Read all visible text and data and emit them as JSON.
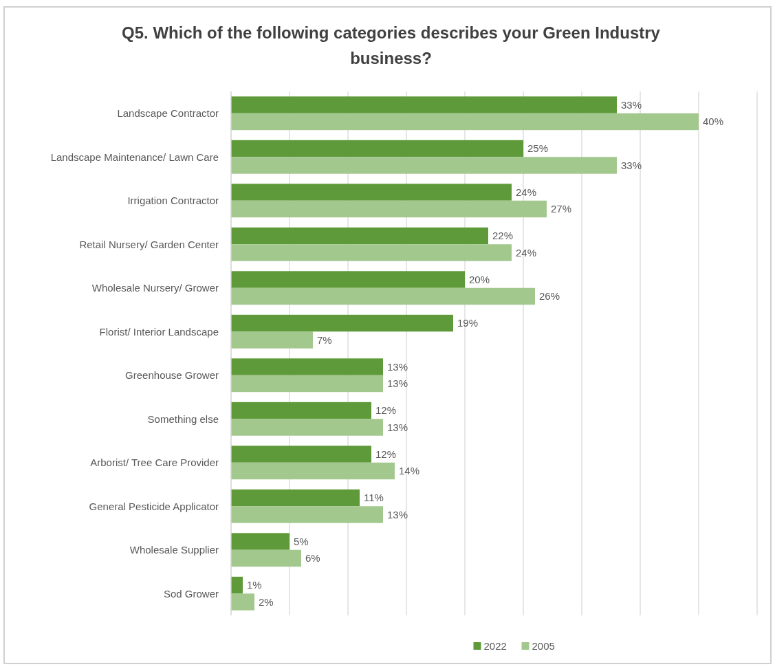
{
  "chart_data": {
    "type": "bar",
    "orientation": "horizontal",
    "title": "Q5. Which of the following categories describes your Green Industry business?",
    "categories": [
      "Landscape Contractor",
      "Landscape Maintenance/ Lawn Care",
      "Irrigation Contractor",
      "Retail Nursery/ Garden Center",
      "Wholesale Nursery/ Grower",
      "Florist/ Interior Landscape",
      "Greenhouse Grower",
      "Something else",
      "Arborist/ Tree Care Provider",
      "General Pesticide Applicator",
      "Wholesale Supplier",
      "Sod Grower"
    ],
    "series": [
      {
        "name": "2022",
        "color": "#5e9a3a",
        "values": [
          33,
          25,
          24,
          22,
          20,
          19,
          13,
          12,
          12,
          11,
          5,
          1
        ],
        "value_labels": [
          "33%",
          "25%",
          "24%",
          "22%",
          "20%",
          "19%",
          "13%",
          "12%",
          "12%",
          "11%",
          "5%",
          "1%"
        ]
      },
      {
        "name": "2005",
        "color": "#a3c88e",
        "values": [
          40,
          33,
          27,
          24,
          26,
          7,
          13,
          13,
          14,
          13,
          6,
          2
        ],
        "value_labels": [
          "40%",
          "33%",
          "27%",
          "24%",
          "26%",
          "7%",
          "13%",
          "13%",
          "14%",
          "13%",
          "6%",
          "2%"
        ]
      }
    ],
    "xlim": [
      0,
      45
    ],
    "xticks": [
      {
        "value": 0,
        "label": null
      },
      {
        "value": 5,
        "label": null
      },
      {
        "value": 10,
        "label": null
      },
      {
        "value": 15,
        "label": null
      },
      {
        "value": 20,
        "label": null
      },
      {
        "value": 25,
        "label": null
      },
      {
        "value": 30,
        "label": null
      },
      {
        "value": 35,
        "label": null
      },
      {
        "value": 40,
        "label": null
      },
      {
        "value": 45,
        "label": null
      }
    ],
    "grid": "x",
    "legend": "bottom"
  }
}
